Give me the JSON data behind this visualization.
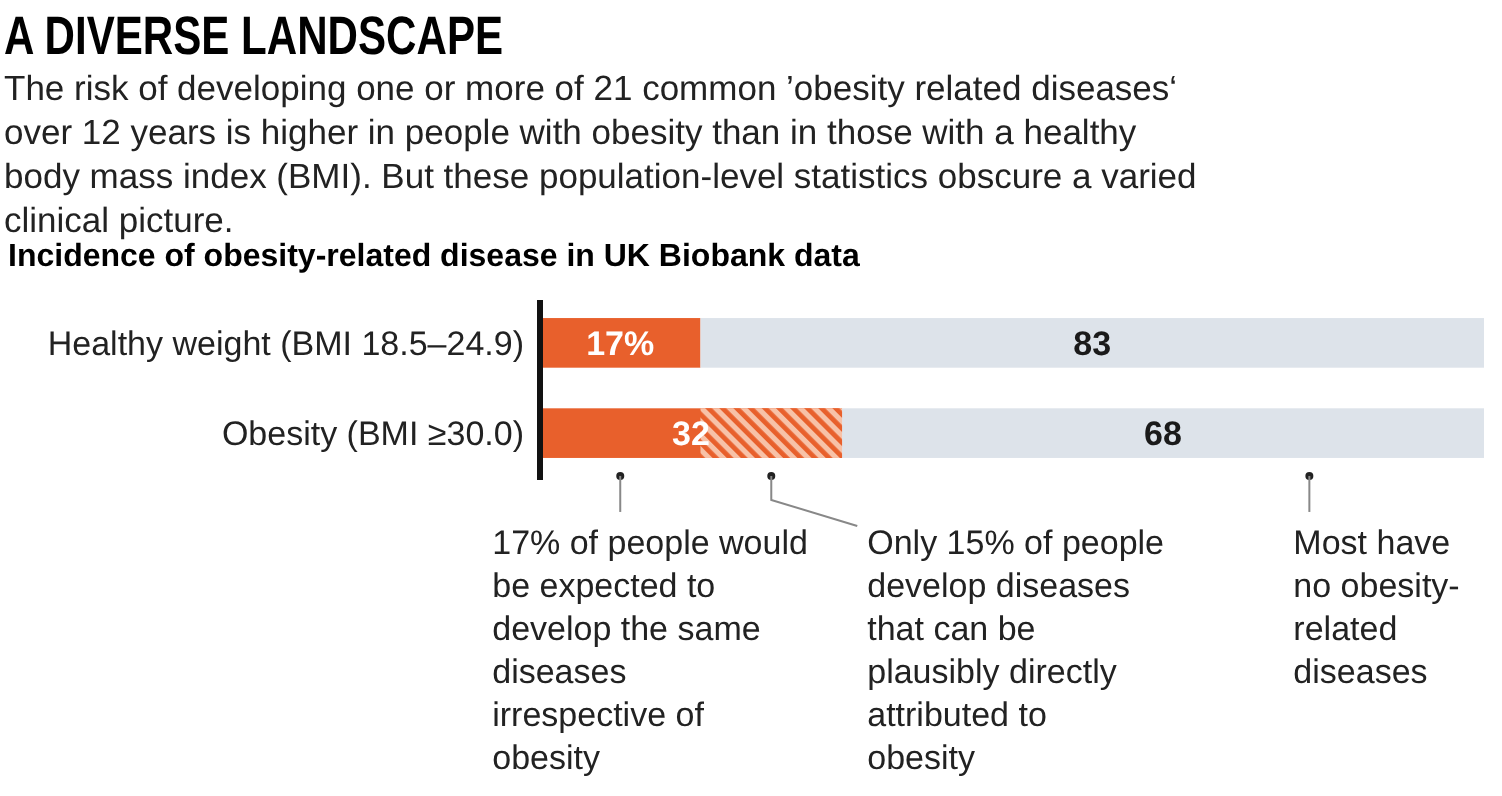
{
  "chart_data": {
    "type": "bar",
    "orientation": "horizontal",
    "stacked": true,
    "title": "A DIVERSE LANDSCAPE",
    "subtitle": "The risk of developing one or more of 21 common ’obesity related diseases‘ over 12 years is higher in people with obesity than in those with a healthy body mass index (BMI). But these population-level statistics obscure a varied clinical picture.",
    "xlabel": "Incidence of obesity-related disease in UK Biobank data",
    "categories": [
      "Healthy weight (BMI 18.5–24.9)",
      "Obesity (BMI ≥30.0)"
    ],
    "xlim": [
      0,
      100
    ],
    "tick_labels": "y",
    "series": [
      {
        "color": "#e8602c",
        "values": [
          17,
          32
        ],
        "value_labels": [
          "17%",
          "32"
        ]
      },
      {
        "color": "#dde3ea",
        "values": [
          83,
          68
        ],
        "value_labels": [
          "83",
          "68"
        ]
      }
    ],
    "bands": [
      {
        "axis": "x",
        "from": 17,
        "to": 32,
        "color": "#e8602c"
      }
    ],
    "annotations": [
      {
        "text": "17% of people would be expected to develop the same diseases irrespective of obesity",
        "x": 8.5,
        "y": "Obesity (BMI ≥30.0)"
      },
      {
        "text": "Only 15% of people develop diseases that can be plausibly directly attributed to obesity",
        "x": 24.5,
        "y": "Obesity (BMI ≥30.0)"
      },
      {
        "text": "Most have no obesity-related diseases",
        "x": 81.5,
        "y": "Obesity (BMI ≥30.0)"
      }
    ]
  }
}
